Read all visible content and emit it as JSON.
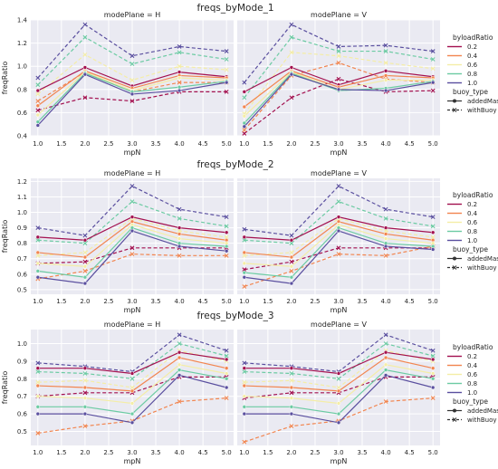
{
  "figure": {
    "x_label": "mpN",
    "y_label": "freqRatio",
    "panel_prefix": "modePlane = "
  },
  "legend": {
    "hue_title": "byloadRatio",
    "hue_items": [
      {
        "label": "0.2",
        "color": "#a3104f"
      },
      {
        "label": "0.4",
        "color": "#f2854f"
      },
      {
        "label": "0.6",
        "color": "#f4eda6"
      },
      {
        "label": "0.8",
        "color": "#6ccba3"
      },
      {
        "label": "1.0",
        "color": "#5a4f9f"
      }
    ],
    "style_title": "buoy_type",
    "style_items": [
      {
        "label": "addedMass",
        "dash": "solid",
        "marker": "circle"
      },
      {
        "label": "withBuoy",
        "dash": "dashed",
        "marker": "x"
      }
    ]
  },
  "chart_data": [
    {
      "type": "line",
      "title": "freqs_byMode_1",
      "xlabel": "mpN",
      "ylabel": "freqRatio",
      "x": [
        1,
        2,
        3,
        4,
        5
      ],
      "xticks": [
        "1.0",
        "1.5",
        "2.0",
        "2.5",
        "3.0",
        "3.5",
        "4.0",
        "4.5",
        "5.0"
      ],
      "ylim": [
        0.4,
        1.4
      ],
      "yticks": [
        "0.4",
        "0.6",
        "0.8",
        "1.0",
        "1.2",
        "1.4"
      ],
      "grid": true,
      "legend_position": "right",
      "panels": [
        {
          "modePlane": "H",
          "series": [
            {
              "byloadRatio": "0.2",
              "buoy_type": "addedMass",
              "values": [
                0.79,
                0.99,
                0.83,
                0.95,
                0.91
              ]
            },
            {
              "byloadRatio": "0.4",
              "buoy_type": "addedMass",
              "values": [
                0.66,
                0.96,
                0.81,
                0.92,
                0.9
              ]
            },
            {
              "byloadRatio": "0.6",
              "buoy_type": "addedMass",
              "values": [
                0.58,
                0.95,
                0.79,
                0.9,
                0.88
              ]
            },
            {
              "byloadRatio": "0.8",
              "buoy_type": "addedMass",
              "values": [
                0.52,
                0.94,
                0.78,
                0.82,
                0.87
              ]
            },
            {
              "byloadRatio": "1.0",
              "buoy_type": "addedMass",
              "values": [
                0.49,
                0.93,
                0.76,
                0.79,
                0.86
              ]
            },
            {
              "byloadRatio": "0.2",
              "buoy_type": "withBuoy",
              "values": [
                0.62,
                0.73,
                0.7,
                0.78,
                0.78
              ]
            },
            {
              "byloadRatio": "0.4",
              "buoy_type": "withBuoy",
              "values": [
                0.7,
                0.95,
                0.78,
                0.86,
                0.86
              ]
            },
            {
              "byloadRatio": "0.6",
              "buoy_type": "withBuoy",
              "values": [
                0.76,
                1.1,
                0.88,
                1.0,
                0.97
              ]
            },
            {
              "byloadRatio": "0.8",
              "buoy_type": "withBuoy",
              "values": [
                0.84,
                1.25,
                1.02,
                1.12,
                1.06
              ]
            },
            {
              "byloadRatio": "1.0",
              "buoy_type": "withBuoy",
              "values": [
                0.9,
                1.36,
                1.09,
                1.17,
                1.13
              ]
            }
          ]
        },
        {
          "modePlane": "V",
          "series": [
            {
              "byloadRatio": "0.2",
              "buoy_type": "addedMass",
              "values": [
                0.78,
                0.99,
                0.84,
                0.96,
                0.91
              ]
            },
            {
              "byloadRatio": "0.4",
              "buoy_type": "addedMass",
              "values": [
                0.65,
                0.96,
                0.82,
                0.92,
                0.9
              ]
            },
            {
              "byloadRatio": "0.6",
              "buoy_type": "addedMass",
              "values": [
                0.57,
                0.95,
                0.8,
                0.88,
                0.88
              ]
            },
            {
              "byloadRatio": "0.8",
              "buoy_type": "addedMass",
              "values": [
                0.51,
                0.94,
                0.79,
                0.81,
                0.87
              ]
            },
            {
              "byloadRatio": "1.0",
              "buoy_type": "addedMass",
              "values": [
                0.48,
                0.93,
                0.8,
                0.79,
                0.86
              ]
            },
            {
              "byloadRatio": "0.2",
              "buoy_type": "withBuoy",
              "values": [
                0.42,
                0.73,
                0.89,
                0.78,
                0.79
              ]
            },
            {
              "byloadRatio": "0.4",
              "buoy_type": "withBuoy",
              "values": [
                0.45,
                0.92,
                1.03,
                0.89,
                0.86
              ]
            },
            {
              "byloadRatio": "0.6",
              "buoy_type": "withBuoy",
              "values": [
                0.59,
                1.12,
                1.09,
                1.03,
                0.98
              ]
            },
            {
              "byloadRatio": "0.8",
              "buoy_type": "withBuoy",
              "values": [
                0.73,
                1.25,
                1.13,
                1.13,
                1.06
              ]
            },
            {
              "byloadRatio": "1.0",
              "buoy_type": "withBuoy",
              "values": [
                0.86,
                1.36,
                1.17,
                1.18,
                1.13
              ]
            }
          ]
        }
      ]
    },
    {
      "type": "line",
      "title": "freqs_byMode_2",
      "xlabel": "mpN",
      "ylabel": "freqRatio",
      "x": [
        1,
        2,
        3,
        4,
        5
      ],
      "xticks": [
        "1.0",
        "1.5",
        "2.0",
        "2.5",
        "3.0",
        "3.5",
        "4.0",
        "4.5",
        "5.0"
      ],
      "ylim": [
        0.47,
        1.22
      ],
      "yticks": [
        "0.5",
        "0.6",
        "0.7",
        "0.8",
        "0.9",
        "1.0",
        "1.1",
        "1.2"
      ],
      "grid": true,
      "legend_position": "right",
      "panels": [
        {
          "modePlane": "H",
          "series": [
            {
              "byloadRatio": "0.2",
              "buoy_type": "addedMass",
              "values": [
                0.84,
                0.82,
                0.97,
                0.9,
                0.87
              ]
            },
            {
              "byloadRatio": "0.4",
              "buoy_type": "addedMass",
              "values": [
                0.74,
                0.71,
                0.94,
                0.86,
                0.82
              ]
            },
            {
              "byloadRatio": "0.6",
              "buoy_type": "addedMass",
              "values": [
                0.67,
                0.65,
                0.92,
                0.83,
                0.8
              ]
            },
            {
              "byloadRatio": "0.8",
              "buoy_type": "addedMass",
              "values": [
                0.62,
                0.58,
                0.9,
                0.8,
                0.78
              ]
            },
            {
              "byloadRatio": "1.0",
              "buoy_type": "addedMass",
              "values": [
                0.58,
                0.54,
                0.88,
                0.78,
                0.75
              ]
            },
            {
              "byloadRatio": "0.2",
              "buoy_type": "withBuoy",
              "values": [
                0.67,
                0.68,
                0.77,
                0.77,
                0.77
              ]
            },
            {
              "byloadRatio": "0.4",
              "buoy_type": "withBuoy",
              "values": [
                0.57,
                0.62,
                0.73,
                0.72,
                0.72
              ]
            },
            {
              "byloadRatio": "0.6",
              "buoy_type": "withBuoy",
              "values": [
                0.72,
                0.74,
                0.96,
                0.88,
                0.84
              ]
            },
            {
              "byloadRatio": "0.8",
              "buoy_type": "withBuoy",
              "values": [
                0.82,
                0.8,
                1.07,
                0.96,
                0.91
              ]
            },
            {
              "byloadRatio": "1.0",
              "buoy_type": "withBuoy",
              "values": [
                0.9,
                0.85,
                1.17,
                1.02,
                0.97
              ]
            }
          ]
        },
        {
          "modePlane": "V",
          "series": [
            {
              "byloadRatio": "0.2",
              "buoy_type": "addedMass",
              "values": [
                0.84,
                0.82,
                0.97,
                0.9,
                0.87
              ]
            },
            {
              "byloadRatio": "0.4",
              "buoy_type": "addedMass",
              "values": [
                0.74,
                0.71,
                0.94,
                0.86,
                0.82
              ]
            },
            {
              "byloadRatio": "0.6",
              "buoy_type": "addedMass",
              "values": [
                0.67,
                0.65,
                0.92,
                0.83,
                0.8
              ]
            },
            {
              "byloadRatio": "0.8",
              "buoy_type": "addedMass",
              "values": [
                0.61,
                0.58,
                0.9,
                0.8,
                0.78
              ]
            },
            {
              "byloadRatio": "1.0",
              "buoy_type": "addedMass",
              "values": [
                0.58,
                0.54,
                0.88,
                0.78,
                0.76
              ]
            },
            {
              "byloadRatio": "0.2",
              "buoy_type": "withBuoy",
              "values": [
                0.63,
                0.68,
                0.77,
                0.77,
                0.77
              ]
            },
            {
              "byloadRatio": "0.4",
              "buoy_type": "withBuoy",
              "values": [
                0.52,
                0.62,
                0.73,
                0.72,
                0.78
              ]
            },
            {
              "byloadRatio": "0.6",
              "buoy_type": "withBuoy",
              "values": [
                0.72,
                0.74,
                0.96,
                0.88,
                0.84
              ]
            },
            {
              "byloadRatio": "0.8",
              "buoy_type": "withBuoy",
              "values": [
                0.82,
                0.8,
                1.07,
                0.96,
                0.91
              ]
            },
            {
              "byloadRatio": "1.0",
              "buoy_type": "withBuoy",
              "values": [
                0.89,
                0.85,
                1.17,
                1.02,
                0.97
              ]
            }
          ]
        }
      ]
    },
    {
      "type": "line",
      "title": "freqs_byMode_3",
      "xlabel": "mpN",
      "ylabel": "freqRatio",
      "x": [
        1,
        2,
        3,
        4,
        5
      ],
      "xticks": [
        "1.0",
        "1.5",
        "2.0",
        "2.5",
        "3.0",
        "3.5",
        "4.0",
        "4.5",
        "5.0"
      ],
      "ylim": [
        0.42,
        1.08
      ],
      "yticks": [
        "0.5",
        "0.6",
        "0.7",
        "0.8",
        "0.9",
        "1.0"
      ],
      "grid": true,
      "legend_position": "right",
      "panels": [
        {
          "modePlane": "H",
          "series": [
            {
              "byloadRatio": "0.2",
              "buoy_type": "addedMass",
              "values": [
                0.86,
                0.86,
                0.83,
                0.95,
                0.91
              ]
            },
            {
              "byloadRatio": "0.4",
              "buoy_type": "addedMass",
              "values": [
                0.76,
                0.75,
                0.73,
                0.92,
                0.86
              ]
            },
            {
              "byloadRatio": "0.6",
              "buoy_type": "addedMass",
              "values": [
                0.7,
                0.69,
                0.66,
                0.88,
                0.83
              ]
            },
            {
              "byloadRatio": "0.8",
              "buoy_type": "addedMass",
              "values": [
                0.64,
                0.64,
                0.6,
                0.85,
                0.8
              ]
            },
            {
              "byloadRatio": "1.0",
              "buoy_type": "addedMass",
              "values": [
                0.6,
                0.6,
                0.55,
                0.82,
                0.75
              ]
            },
            {
              "byloadRatio": "0.2",
              "buoy_type": "withBuoy",
              "values": [
                0.7,
                0.72,
                0.72,
                0.81,
                0.81
              ]
            },
            {
              "byloadRatio": "0.4",
              "buoy_type": "withBuoy",
              "values": [
                0.49,
                0.53,
                0.56,
                0.67,
                0.69
              ]
            },
            {
              "byloadRatio": "0.6",
              "buoy_type": "withBuoy",
              "values": [
                0.78,
                0.79,
                0.75,
                0.96,
                0.9
              ]
            },
            {
              "byloadRatio": "0.8",
              "buoy_type": "withBuoy",
              "values": [
                0.84,
                0.83,
                0.8,
                1.0,
                0.93
              ]
            },
            {
              "byloadRatio": "1.0",
              "buoy_type": "withBuoy",
              "values": [
                0.89,
                0.87,
                0.84,
                1.05,
                0.96
              ]
            }
          ]
        },
        {
          "modePlane": "V",
          "series": [
            {
              "byloadRatio": "0.2",
              "buoy_type": "addedMass",
              "values": [
                0.86,
                0.86,
                0.83,
                0.95,
                0.91
              ]
            },
            {
              "byloadRatio": "0.4",
              "buoy_type": "addedMass",
              "values": [
                0.76,
                0.75,
                0.73,
                0.92,
                0.86
              ]
            },
            {
              "byloadRatio": "0.6",
              "buoy_type": "addedMass",
              "values": [
                0.7,
                0.69,
                0.66,
                0.88,
                0.83
              ]
            },
            {
              "byloadRatio": "0.8",
              "buoy_type": "addedMass",
              "values": [
                0.64,
                0.64,
                0.6,
                0.85,
                0.8
              ]
            },
            {
              "byloadRatio": "1.0",
              "buoy_type": "addedMass",
              "values": [
                0.6,
                0.6,
                0.55,
                0.82,
                0.75
              ]
            },
            {
              "byloadRatio": "0.2",
              "buoy_type": "withBuoy",
              "values": [
                0.69,
                0.72,
                0.72,
                0.81,
                0.81
              ]
            },
            {
              "byloadRatio": "0.4",
              "buoy_type": "withBuoy",
              "values": [
                0.44,
                0.53,
                0.56,
                0.67,
                0.69
              ]
            },
            {
              "byloadRatio": "0.6",
              "buoy_type": "withBuoy",
              "values": [
                0.78,
                0.79,
                0.75,
                0.96,
                0.9
              ]
            },
            {
              "byloadRatio": "0.8",
              "buoy_type": "withBuoy",
              "values": [
                0.84,
                0.83,
                0.8,
                1.0,
                0.93
              ]
            },
            {
              "byloadRatio": "1.0",
              "buoy_type": "withBuoy",
              "values": [
                0.89,
                0.87,
                0.84,
                1.05,
                0.96
              ]
            }
          ]
        }
      ]
    }
  ]
}
